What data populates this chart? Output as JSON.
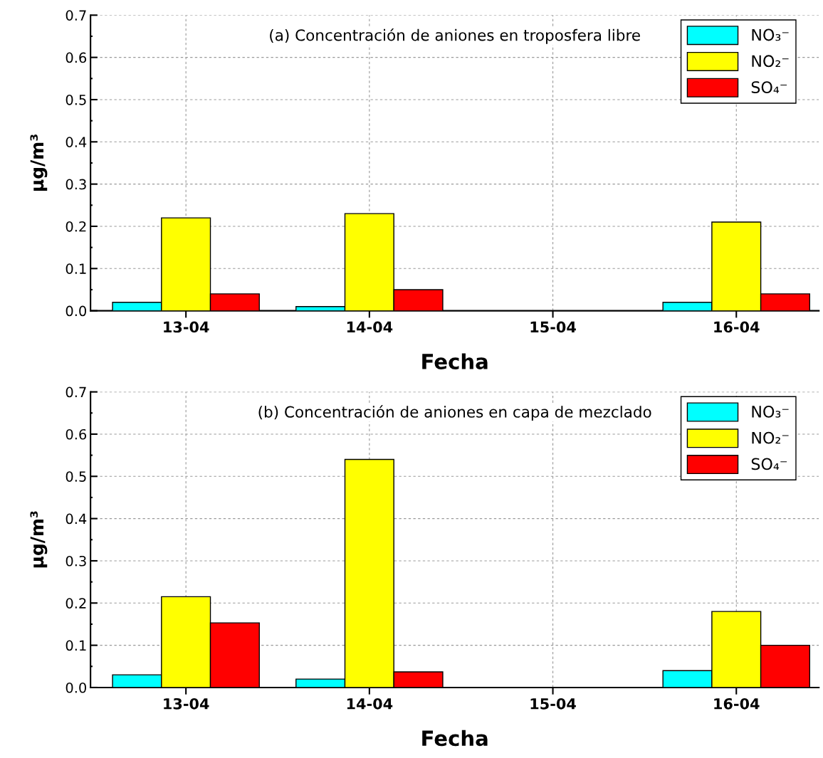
{
  "chart_data": [
    {
      "type": "bar",
      "title": "(a) Concentración de aniones en troposfera libre",
      "xlabel": "Fecha",
      "ylabel": "μg/m³",
      "categories": [
        "13-04",
        "14-04",
        "15-04",
        "16-04"
      ],
      "series": [
        {
          "name": "NO₃⁻",
          "color": "#00ffff",
          "values": [
            0.02,
            0.01,
            null,
            0.02
          ]
        },
        {
          "name": "NO₂⁻",
          "color": "#ffff00",
          "values": [
            0.22,
            0.23,
            null,
            0.21
          ]
        },
        {
          "name": "SO₄⁻",
          "color": "#ff0000",
          "values": [
            0.04,
            0.05,
            null,
            0.04
          ]
        }
      ],
      "ylim": [
        0,
        0.7
      ],
      "yticks": [
        {
          "value": 0,
          "label": "0.0"
        },
        0.1,
        0.2,
        0.3,
        0.4,
        0.5,
        0.6,
        0.7
      ],
      "grid": true,
      "legend": "top right"
    },
    {
      "type": "bar",
      "title": "(b) Concentración de aniones en capa de mezclado",
      "xlabel": "Fecha",
      "ylabel": "μg/m³",
      "categories": [
        "13-04",
        "14-04",
        "15-04",
        "16-04"
      ],
      "series": [
        {
          "name": "NO₃⁻",
          "color": "#00ffff",
          "values": [
            0.03,
            0.02,
            null,
            0.04
          ]
        },
        {
          "name": "NO₂⁻",
          "color": "#ffff00",
          "values": [
            0.215,
            0.54,
            null,
            0.18
          ]
        },
        {
          "name": "SO₄⁻",
          "color": "#ff0000",
          "values": [
            0.153,
            0.037,
            null,
            0.1
          ]
        }
      ],
      "ylim": [
        0,
        0.7
      ],
      "yticks": [
        {
          "value": 0,
          "label": "0.0"
        },
        0.1,
        0.2,
        0.3,
        0.4,
        0.5,
        0.6,
        0.7
      ],
      "grid": true,
      "legend": "top right"
    }
  ]
}
